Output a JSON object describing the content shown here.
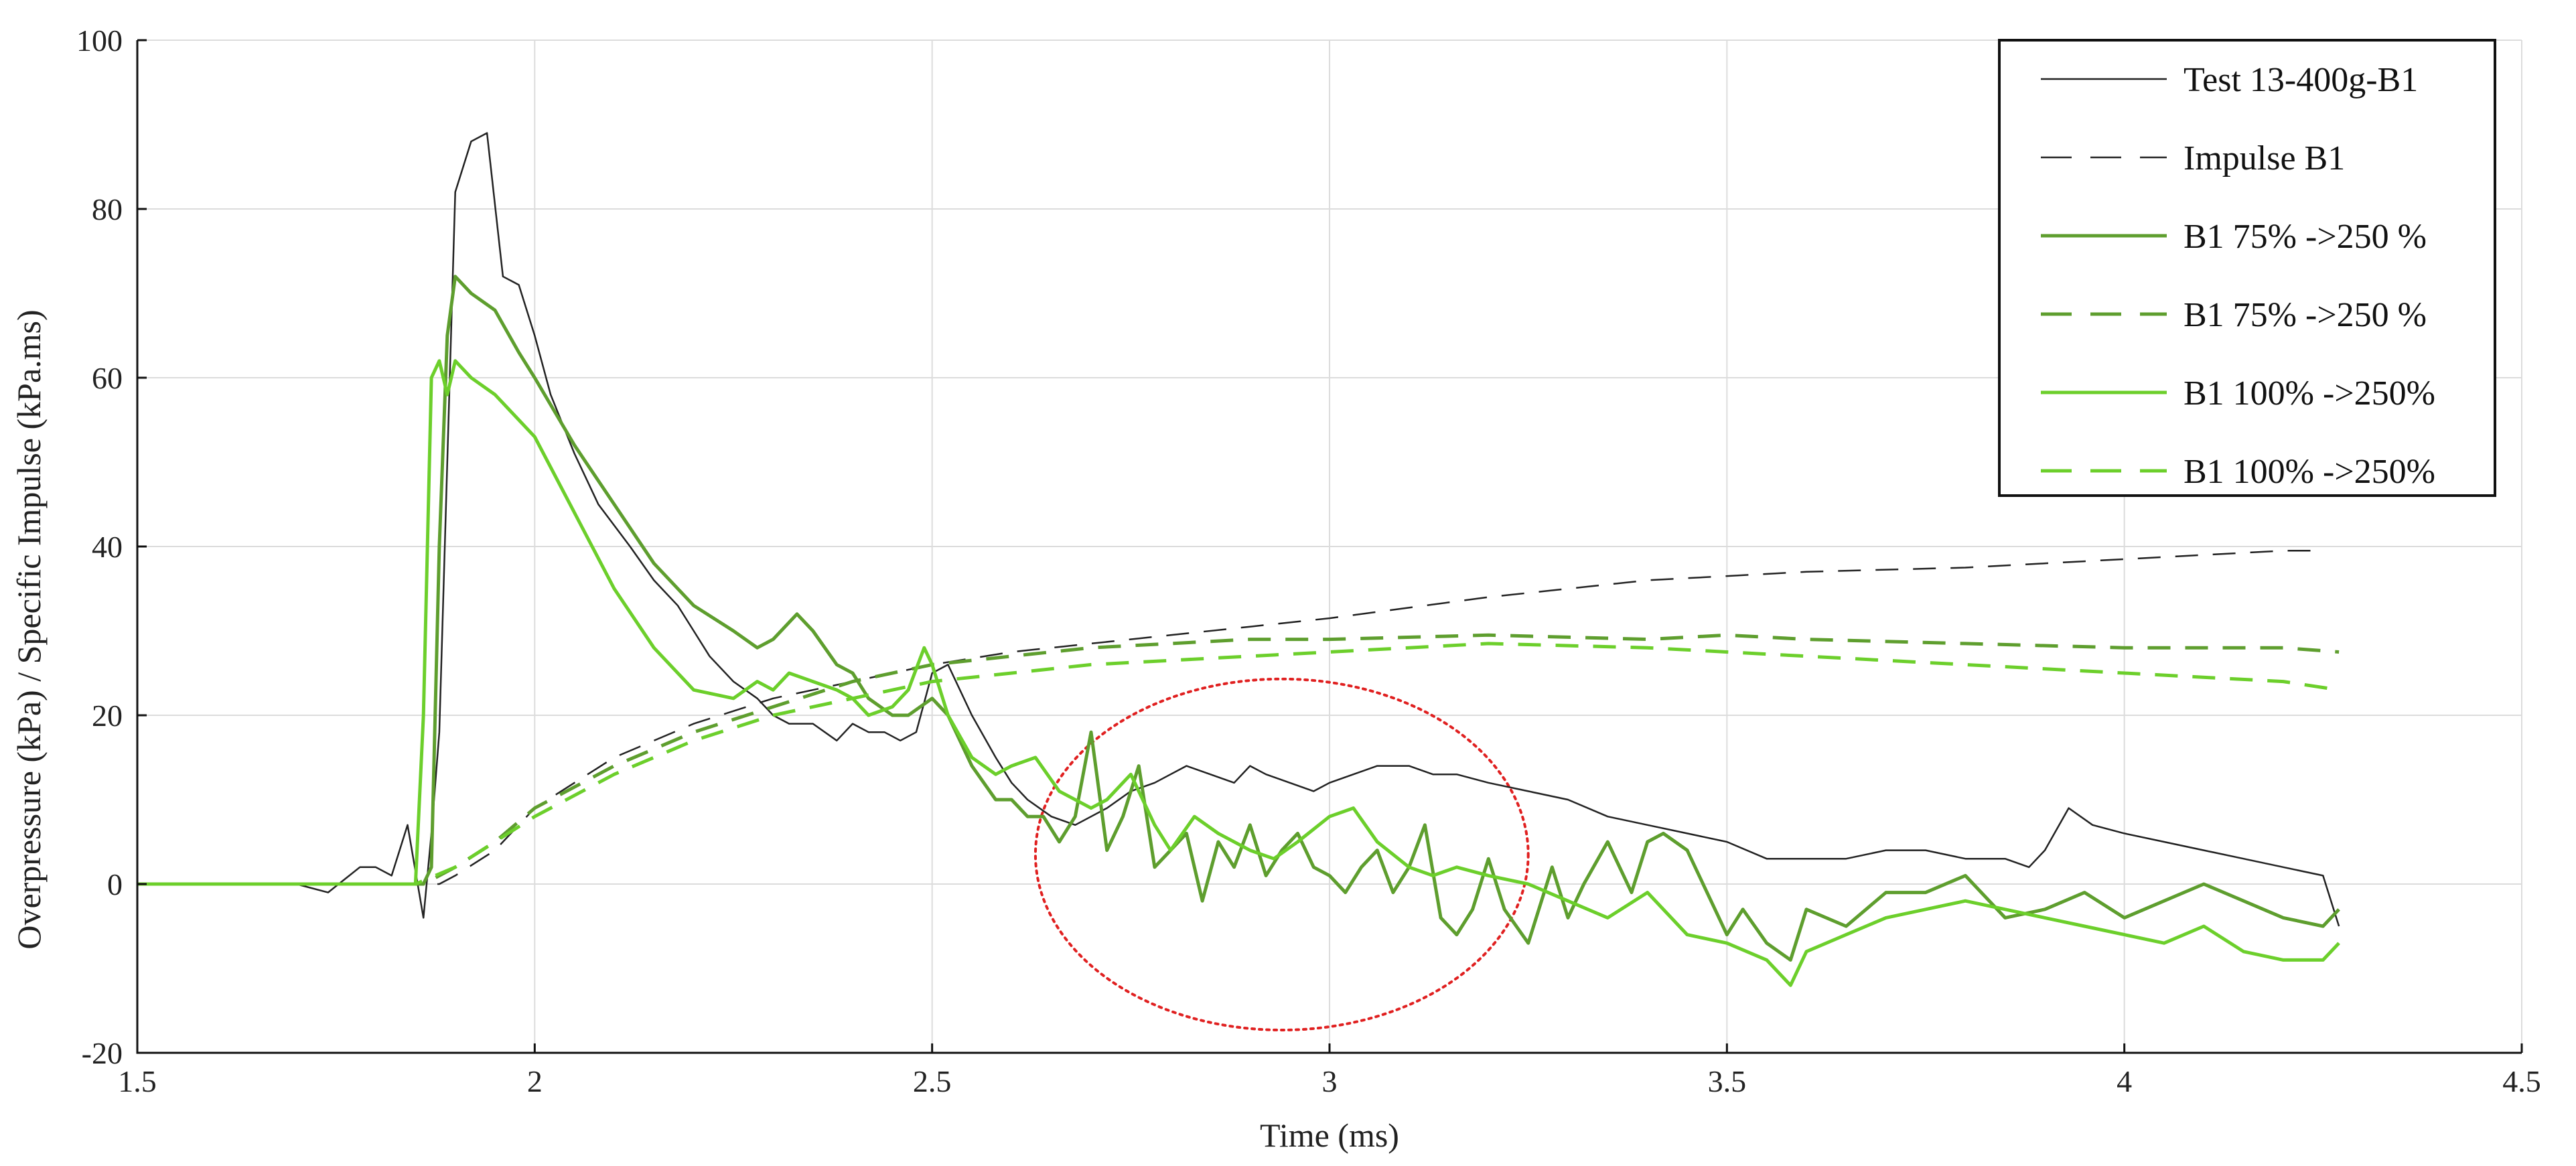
{
  "chart_data": {
    "type": "line",
    "title": "",
    "xlabel": "Time (ms)",
    "ylabel": "Overpressure (kPa) / Specific Impulse (kPa.ms)",
    "xlim": [
      1.5,
      4.5
    ],
    "ylim": [
      -20,
      100
    ],
    "xticks": [
      "1.5",
      "2",
      "2.5",
      "3",
      "3.5",
      "4",
      "4.5"
    ],
    "yticks": [
      "-20",
      "0",
      "20",
      "40",
      "60",
      "80",
      "100"
    ],
    "grid": true,
    "legend_position": "top-right",
    "annotation": {
      "type": "ellipse",
      "color": "#e02020",
      "style": "dotted",
      "center": [
        2.94,
        3.5
      ],
      "radius": [
        0.31,
        20.8
      ]
    },
    "series": [
      {
        "name": "Test 13-400g-B1",
        "color": "#222222",
        "style": "solid",
        "width": 2.5,
        "x": [
          1.5,
          1.7,
          1.74,
          1.78,
          1.8,
          1.82,
          1.84,
          1.86,
          1.87,
          1.88,
          1.9,
          1.92,
          1.94,
          1.96,
          1.98,
          2.0,
          2.02,
          2.05,
          2.08,
          2.12,
          2.15,
          2.18,
          2.2,
          2.22,
          2.25,
          2.28,
          2.3,
          2.32,
          2.35,
          2.38,
          2.4,
          2.42,
          2.44,
          2.46,
          2.48,
          2.5,
          2.52,
          2.55,
          2.58,
          2.6,
          2.62,
          2.65,
          2.68,
          2.7,
          2.72,
          2.75,
          2.78,
          2.8,
          2.82,
          2.85,
          2.88,
          2.9,
          2.92,
          2.95,
          2.98,
          3.0,
          3.03,
          3.06,
          3.1,
          3.13,
          3.16,
          3.2,
          3.25,
          3.3,
          3.35,
          3.4,
          3.45,
          3.5,
          3.55,
          3.6,
          3.65,
          3.7,
          3.75,
          3.8,
          3.85,
          3.88,
          3.9,
          3.93,
          3.96,
          4.0,
          4.05,
          4.1,
          4.15,
          4.2,
          4.25,
          4.27
        ],
        "y": [
          0,
          0,
          -1,
          2,
          2,
          1,
          7,
          -4,
          6,
          18,
          82,
          88,
          89,
          72,
          71,
          65,
          58,
          51,
          45,
          40,
          36,
          33,
          30,
          27,
          24,
          22,
          20,
          19,
          19,
          17,
          19,
          18,
          18,
          17,
          18,
          25,
          26,
          20,
          15,
          12,
          10,
          8,
          7,
          8,
          9,
          11,
          12,
          13,
          14,
          13,
          12,
          14,
          13,
          12,
          11,
          12,
          13,
          14,
          14,
          13,
          13,
          12,
          11,
          10,
          8,
          7,
          6,
          5,
          3,
          3,
          3,
          4,
          4,
          3,
          3,
          2,
          4,
          9,
          7,
          6,
          5,
          4,
          3,
          2,
          1,
          -5
        ]
      },
      {
        "name": "Impulse B1",
        "color": "#222222",
        "style": "dashed",
        "width": 2.5,
        "x": [
          1.5,
          1.88,
          1.9,
          1.95,
          2.0,
          2.1,
          2.2,
          2.3,
          2.4,
          2.5,
          2.6,
          2.7,
          2.8,
          2.9,
          3.0,
          3.2,
          3.4,
          3.6,
          3.8,
          4.0,
          4.2,
          4.25
        ],
        "y": [
          0,
          0,
          1,
          4,
          9,
          15,
          19,
          22,
          24,
          26,
          27.5,
          28.5,
          29.5,
          30.5,
          31.5,
          34,
          36,
          37,
          37.5,
          38.5,
          39.5,
          39.5
        ]
      },
      {
        "name": "B1 75% ->250 %",
        "color": "#5e9e2e",
        "style": "solid",
        "width": 5,
        "x": [
          1.5,
          1.6,
          1.7,
          1.8,
          1.86,
          1.87,
          1.88,
          1.89,
          1.9,
          1.92,
          1.95,
          1.98,
          2.0,
          2.05,
          2.1,
          2.15,
          2.2,
          2.25,
          2.28,
          2.3,
          2.33,
          2.35,
          2.38,
          2.4,
          2.42,
          2.45,
          2.47,
          2.5,
          2.52,
          2.55,
          2.58,
          2.6,
          2.62,
          2.64,
          2.66,
          2.68,
          2.7,
          2.72,
          2.74,
          2.76,
          2.78,
          2.8,
          2.82,
          2.84,
          2.86,
          2.88,
          2.9,
          2.92,
          2.94,
          2.96,
          2.98,
          3.0,
          3.02,
          3.04,
          3.06,
          3.08,
          3.1,
          3.12,
          3.14,
          3.16,
          3.18,
          3.2,
          3.22,
          3.25,
          3.28,
          3.3,
          3.32,
          3.35,
          3.38,
          3.4,
          3.42,
          3.45,
          3.48,
          3.5,
          3.52,
          3.55,
          3.58,
          3.6,
          3.65,
          3.7,
          3.75,
          3.8,
          3.85,
          3.9,
          3.95,
          4.0,
          4.05,
          4.1,
          4.15,
          4.2,
          4.25,
          4.27
        ],
        "y": [
          0,
          0,
          0,
          0,
          0,
          2,
          40,
          65,
          72,
          70,
          68,
          63,
          60,
          52,
          45,
          38,
          33,
          30,
          28,
          29,
          32,
          30,
          26,
          25,
          22,
          20,
          20,
          22,
          20,
          14,
          10,
          10,
          8,
          8,
          5,
          8,
          18,
          4,
          8,
          14,
          2,
          4,
          6,
          -2,
          5,
          2,
          7,
          1,
          4,
          6,
          2,
          1,
          -1,
          2,
          4,
          -1,
          2,
          7,
          -4,
          -6,
          -3,
          3,
          -3,
          -7,
          2,
          -4,
          0,
          5,
          -1,
          5,
          6,
          4,
          -2,
          -6,
          -3,
          -7,
          -9,
          -3,
          -5,
          -1,
          -1,
          1,
          -4,
          -3,
          -1,
          -4,
          -2,
          0,
          -2,
          -4,
          -5,
          -3
        ]
      },
      {
        "name": "B1 75% ->250 %",
        "color": "#5e9e2e",
        "style": "dashed",
        "width": 5,
        "x": [
          1.5,
          1.86,
          1.9,
          1.95,
          2.0,
          2.1,
          2.2,
          2.3,
          2.4,
          2.5,
          2.6,
          2.7,
          2.8,
          2.9,
          3.0,
          3.2,
          3.4,
          3.5,
          3.6,
          3.8,
          4.0,
          4.2,
          4.27
        ],
        "y": [
          0,
          0,
          2,
          5,
          9,
          14,
          18,
          21,
          24,
          26,
          27,
          28,
          28.5,
          29,
          29,
          29.5,
          29,
          29.5,
          29,
          28.5,
          28,
          28,
          27.5
        ]
      },
      {
        "name": "B1 100% ->250%",
        "color": "#6ccf2b",
        "style": "solid",
        "width": 5,
        "x": [
          1.5,
          1.6,
          1.7,
          1.8,
          1.85,
          1.86,
          1.87,
          1.88,
          1.89,
          1.9,
          1.92,
          1.95,
          1.98,
          2.0,
          2.05,
          2.1,
          2.15,
          2.2,
          2.25,
          2.28,
          2.3,
          2.32,
          2.35,
          2.38,
          2.4,
          2.42,
          2.45,
          2.47,
          2.49,
          2.5,
          2.52,
          2.55,
          2.58,
          2.6,
          2.63,
          2.66,
          2.7,
          2.72,
          2.75,
          2.78,
          2.8,
          2.83,
          2.86,
          2.9,
          2.93,
          2.96,
          3.0,
          3.03,
          3.06,
          3.1,
          3.13,
          3.16,
          3.2,
          3.25,
          3.3,
          3.35,
          3.4,
          3.45,
          3.5,
          3.55,
          3.58,
          3.6,
          3.65,
          3.7,
          3.75,
          3.8,
          3.85,
          3.9,
          3.95,
          4.0,
          4.05,
          4.1,
          4.15,
          4.2,
          4.25,
          4.27
        ],
        "y": [
          0,
          0,
          0,
          0,
          0,
          20,
          60,
          62,
          58,
          62,
          60,
          58,
          55,
          53,
          44,
          35,
          28,
          23,
          22,
          24,
          23,
          25,
          24,
          23,
          22,
          20,
          21,
          23,
          28,
          26,
          20,
          15,
          13,
          14,
          15,
          11,
          9,
          10,
          13,
          7,
          4,
          8,
          6,
          4,
          3,
          5,
          8,
          9,
          5,
          2,
          1,
          2,
          1,
          0,
          -2,
          -4,
          -1,
          -6,
          -7,
          -9,
          -12,
          -8,
          -6,
          -4,
          -3,
          -2,
          -3,
          -4,
          -5,
          -6,
          -7,
          -5,
          -8,
          -9,
          -9,
          -7
        ]
      },
      {
        "name": "B1 100% ->250%",
        "color": "#6ccf2b",
        "style": "dashed",
        "width": 5,
        "x": [
          1.5,
          1.85,
          1.9,
          1.95,
          2.0,
          2.1,
          2.2,
          2.3,
          2.4,
          2.5,
          2.6,
          2.7,
          2.8,
          2.9,
          3.0,
          3.2,
          3.4,
          3.6,
          3.8,
          4.0,
          4.2,
          4.27
        ],
        "y": [
          0,
          0,
          2,
          5,
          8,
          13,
          17,
          20,
          22,
          24,
          25,
          26,
          26.5,
          27,
          27.5,
          28.5,
          28,
          27,
          26,
          25,
          24,
          23
        ]
      }
    ]
  }
}
